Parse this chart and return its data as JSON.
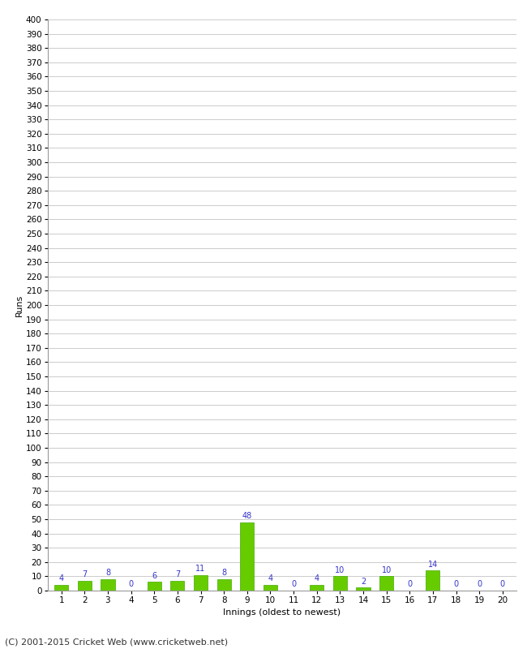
{
  "xlabel": "Innings (oldest to newest)",
  "ylabel": "Runs",
  "categories": [
    1,
    2,
    3,
    4,
    5,
    6,
    7,
    8,
    9,
    10,
    11,
    12,
    13,
    14,
    15,
    16,
    17,
    18,
    19,
    20
  ],
  "values": [
    4,
    7,
    8,
    0,
    6,
    7,
    11,
    8,
    48,
    4,
    0,
    4,
    10,
    2,
    10,
    0,
    14,
    0,
    0,
    0
  ],
  "bar_color": "#66cc00",
  "bar_edge_color": "#44aa00",
  "label_color": "#3333cc",
  "ylim": [
    0,
    400
  ],
  "yticks": [
    0,
    10,
    20,
    30,
    40,
    50,
    60,
    70,
    80,
    90,
    100,
    110,
    120,
    130,
    140,
    150,
    160,
    170,
    180,
    190,
    200,
    210,
    220,
    230,
    240,
    250,
    260,
    270,
    280,
    290,
    300,
    310,
    320,
    330,
    340,
    350,
    360,
    370,
    380,
    390,
    400
  ],
  "background_color": "#ffffff",
  "grid_color": "#cccccc",
  "footer": "(C) 2001-2015 Cricket Web (www.cricketweb.net)",
  "label_fontsize": 7,
  "axis_fontsize": 7.5,
  "ylabel_fontsize": 8,
  "xlabel_fontsize": 8,
  "footer_fontsize": 8
}
